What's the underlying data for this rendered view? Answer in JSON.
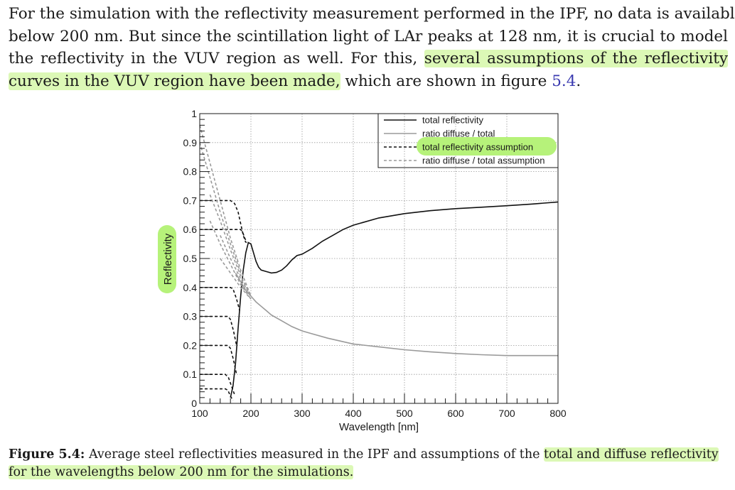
{
  "paragraph": {
    "line1": "For the simulation with the reflectivity measurement performed in the IPF, no data is available",
    "line2": "below 200 nm. But since the scintillation light of LAr peaks at 128 nm, it is crucial to model",
    "line3_plain": "the reflectivity in the VUV region as well. For this,",
    "line3_highlight": "several assumptions of the reflectivity",
    "line4_highlight": "curves in the VUV region have been made,",
    "line4_rest": "which are shown in figure",
    "figure_ref": "5.4",
    "line4_end": "."
  },
  "caption": {
    "label": "Figure 5.4:",
    "text": "Average steel reflectivities measured in the IPF and assumptions of the",
    "highlight_line1": "total and diffuse reflectivity",
    "highlight_line2": "for the wavelengths below 200 nm for the simulations."
  },
  "colors": {
    "highlight": "#dcf8b6",
    "label_highlight": "#b6f27a",
    "total_line": "#111111",
    "diffuse_line": "#9a9a9a"
  },
  "chart_data": {
    "type": "line",
    "xlabel": "Wavelength [nm]",
    "ylabel": "Reflectivity",
    "xlim": [
      100,
      800
    ],
    "ylim": [
      0,
      1
    ],
    "x_ticks": [
      "100",
      "200",
      "300",
      "400",
      "500",
      "600",
      "700",
      "800"
    ],
    "y_ticks": [
      "0",
      "0.1",
      "0.2",
      "0.3",
      "0.4",
      "0.5",
      "0.6",
      "0.7",
      "0.8",
      "0.9",
      "1"
    ],
    "grid": true,
    "legend_position": "top-right",
    "legend": [
      "total reflectivity",
      "ratio diffuse / total",
      "total reflectivity assumption",
      "ratio diffuse / total assumption"
    ],
    "series": [
      {
        "name": "total reflectivity",
        "style": "solid",
        "color": "#111111",
        "x": [
          160,
          165,
          170,
          175,
          180,
          185,
          190,
          195,
          200,
          205,
          210,
          215,
          220,
          230,
          240,
          250,
          260,
          270,
          280,
          290,
          300,
          320,
          340,
          360,
          380,
          400,
          450,
          500,
          550,
          600,
          650,
          700,
          750,
          800
        ],
        "y": [
          0.02,
          0.06,
          0.14,
          0.26,
          0.37,
          0.46,
          0.52,
          0.555,
          0.55,
          0.52,
          0.49,
          0.47,
          0.46,
          0.455,
          0.45,
          0.452,
          0.46,
          0.475,
          0.495,
          0.51,
          0.515,
          0.535,
          0.56,
          0.58,
          0.6,
          0.615,
          0.64,
          0.655,
          0.665,
          0.672,
          0.677,
          0.682,
          0.688,
          0.695
        ]
      },
      {
        "name": "ratio diffuse / total",
        "style": "solid",
        "color": "#9a9a9a",
        "x": [
          170,
          180,
          190,
          200,
          210,
          220,
          230,
          240,
          260,
          280,
          300,
          320,
          350,
          400,
          450,
          500,
          550,
          600,
          650,
          700,
          750,
          800
        ],
        "y": [
          0.45,
          0.42,
          0.39,
          0.37,
          0.35,
          0.335,
          0.32,
          0.305,
          0.285,
          0.265,
          0.25,
          0.24,
          0.225,
          0.205,
          0.195,
          0.185,
          0.178,
          0.172,
          0.168,
          0.165,
          0.165,
          0.165
        ]
      },
      {
        "name": "total reflectivity assumption",
        "style": "dashed",
        "color": "#111111",
        "curves": [
          {
            "x": [
              100,
              160,
              168,
              175,
              180,
              185,
              190
            ],
            "y": [
              0.7,
              0.7,
              0.69,
              0.66,
              0.62,
              0.58,
              0.555
            ]
          },
          {
            "x": [
              100,
              180,
              184,
              188,
              192
            ],
            "y": [
              0.6,
              0.6,
              0.59,
              0.57,
              0.555
            ]
          },
          {
            "x": [
              100,
              160,
              165,
              172,
              178
            ],
            "y": [
              0.4,
              0.4,
              0.395,
              0.36,
              0.32
            ]
          },
          {
            "x": [
              100,
              155,
              160,
              166,
              172
            ],
            "y": [
              0.3,
              0.3,
              0.29,
              0.25,
              0.2
            ]
          },
          {
            "x": [
              100,
              155,
              160,
              166,
              172
            ],
            "y": [
              0.2,
              0.2,
              0.19,
              0.15,
              0.1
            ]
          },
          {
            "x": [
              100,
              150,
              156,
              162,
              168
            ],
            "y": [
              0.1,
              0.1,
              0.09,
              0.06,
              0.03
            ]
          },
          {
            "x": [
              100,
              150,
              155,
              160,
              165
            ],
            "y": [
              0.05,
              0.05,
              0.045,
              0.025,
              0.01
            ]
          }
        ]
      },
      {
        "name": "ratio diffuse / total assumption",
        "style": "dashed",
        "color": "#9a9a9a",
        "curves": [
          {
            "x": [
              100,
              120,
              140,
              160,
              180,
              200
            ],
            "y": [
              0.96,
              0.83,
              0.7,
              0.57,
              0.46,
              0.37
            ]
          },
          {
            "x": [
              120,
              140,
              160,
              180,
              200
            ],
            "y": [
              0.72,
              0.63,
              0.53,
              0.44,
              0.37
            ]
          },
          {
            "x": [
              120,
              140,
              160,
              180,
              200
            ],
            "y": [
              0.63,
              0.55,
              0.48,
              0.41,
              0.36
            ]
          },
          {
            "x": [
              140,
              160,
              180,
              200
            ],
            "y": [
              0.58,
              0.5,
              0.43,
              0.37
            ]
          },
          {
            "x": [
              140,
              160,
              180,
              200
            ],
            "y": [
              0.5,
              0.45,
              0.4,
              0.36
            ]
          },
          {
            "x": [
              100,
              120,
              140,
              160,
              180
            ],
            "y": [
              0.9,
              0.78,
              0.66,
              0.55,
              0.45
            ]
          }
        ]
      }
    ]
  }
}
